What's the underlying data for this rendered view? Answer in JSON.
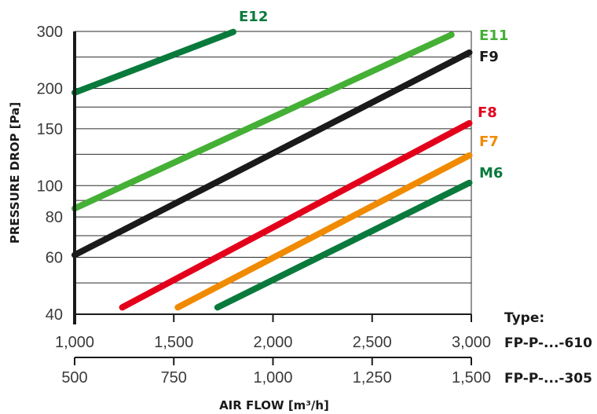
{
  "chart_data": {
    "type": "line",
    "xlabel": "AIR FLOW [m³/h]",
    "ylabel": "PRESSURE DROP [Pa]",
    "y_scale": "log",
    "y_ticks": [
      40,
      60,
      80,
      100,
      150,
      200,
      300
    ],
    "y_tick_labels": [
      "40",
      "60",
      "80",
      "100",
      "150",
      "200",
      "300"
    ],
    "ylim": [
      40,
      300
    ],
    "x_axes": [
      {
        "type_label": "FP-P-...-610",
        "xlim": [
          1000,
          3000
        ],
        "ticks": [
          1000,
          1500,
          2000,
          2500,
          3000
        ],
        "tick_labels": [
          "1,000",
          "1,500",
          "2,000",
          "2,500",
          "3,000"
        ]
      },
      {
        "type_label": "FP-P-...-305",
        "xlim": [
          500,
          1500
        ],
        "ticks": [
          500,
          750,
          1000,
          1250,
          1500
        ],
        "tick_labels": [
          "500",
          "750",
          "1,000",
          "1,250",
          "1,500"
        ]
      }
    ],
    "type_heading": "Type:",
    "grid": "horizontal",
    "series": [
      {
        "name": "E12",
        "color": "#0a7a3c",
        "points": [
          [
            1000,
            194
          ],
          [
            1800,
            299
          ]
        ]
      },
      {
        "name": "E11",
        "color": "#44b035",
        "points": [
          [
            1000,
            85
          ],
          [
            2900,
            293
          ]
        ]
      },
      {
        "name": "F9",
        "color": "#1a1a1a",
        "points": [
          [
            1000,
            61
          ],
          [
            2990,
            258
          ]
        ]
      },
      {
        "name": "F8",
        "color": "#e3001b",
        "points": [
          [
            1240,
            42
          ],
          [
            2990,
            156
          ]
        ]
      },
      {
        "name": "F7",
        "color": "#f08a00",
        "points": [
          [
            1520,
            42
          ],
          [
            2990,
            124
          ]
        ]
      },
      {
        "name": "M6",
        "color": "#0a7a3c",
        "points": [
          [
            1720,
            42
          ],
          [
            2990,
            102
          ]
        ]
      }
    ]
  }
}
